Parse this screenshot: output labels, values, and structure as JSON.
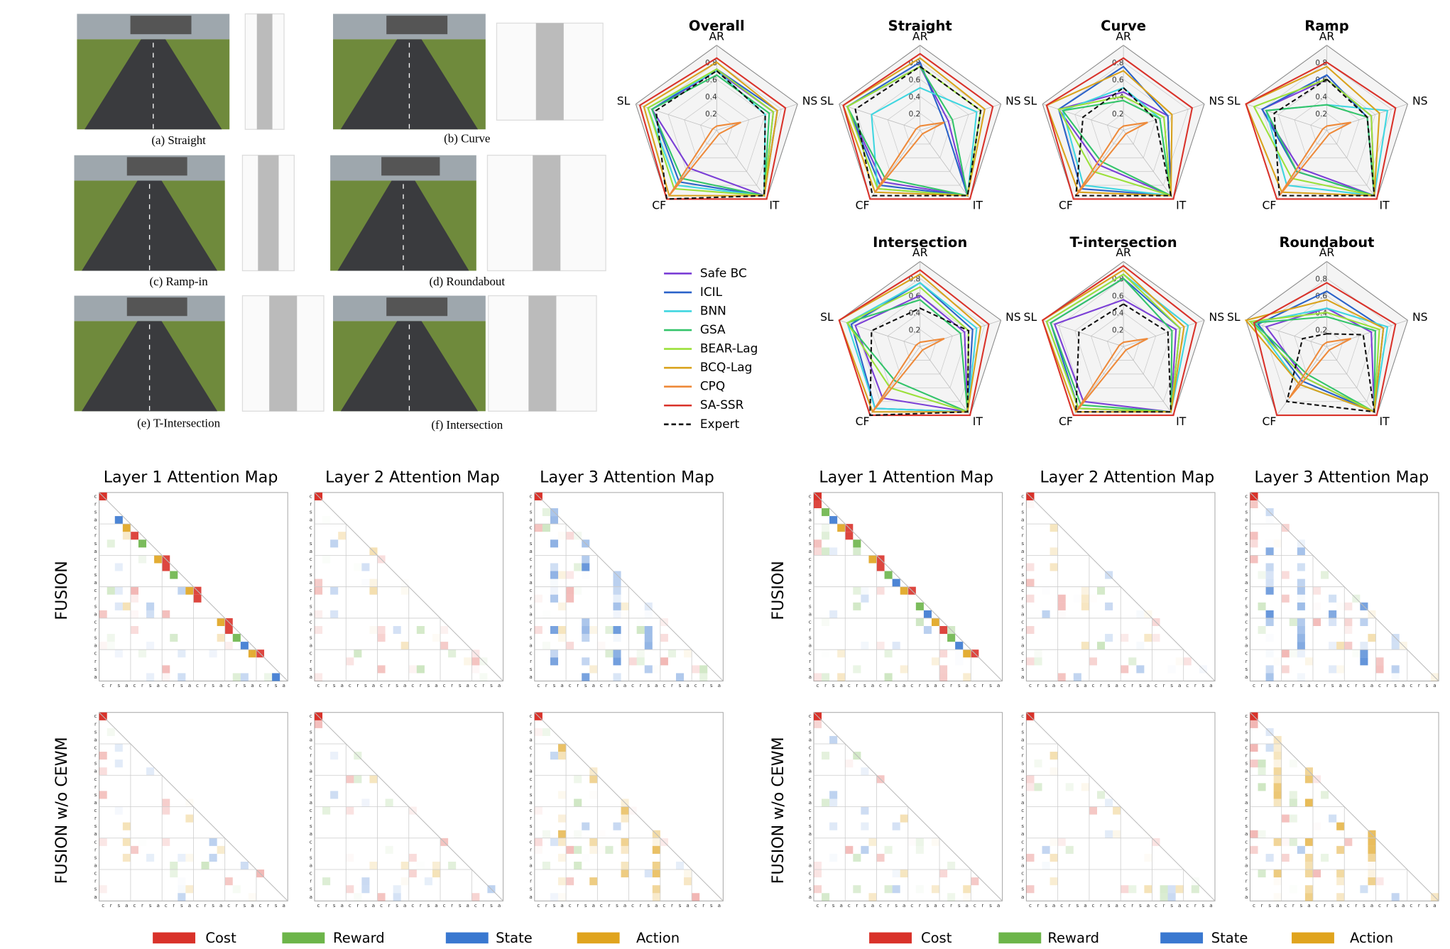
{
  "scenarios": {
    "captions": [
      "(a) Straight",
      "(b) Curve",
      "(c) Ramp-in",
      "(d) Roundabout",
      "(e) T-Intersection",
      "(f) Intersection"
    ]
  },
  "legend": [
    {
      "name": "Safe BC",
      "color": "#7b3fd6"
    },
    {
      "name": "ICIL",
      "color": "#2a62c9"
    },
    {
      "name": "BNN",
      "color": "#3fd6e0"
    },
    {
      "name": "GSA",
      "color": "#33c46a"
    },
    {
      "name": "BEAR-Lag",
      "color": "#9be03a"
    },
    {
      "name": "BCQ-Lag",
      "color": "#d9a21c"
    },
    {
      "name": "CPQ",
      "color": "#ee8a3a"
    },
    {
      "name": "SA-SSR",
      "color": "#d9322a"
    },
    {
      "name": "Expert",
      "color": "#111111",
      "dash": true
    }
  ],
  "chart_data": [
    {
      "type": "radar",
      "title": "Overall",
      "axes": [
        "AR",
        "NS",
        "IT",
        "CF",
        "SL"
      ],
      "rlim": [
        0,
        1
      ],
      "rticks": [
        0.2,
        0.4,
        0.6,
        0.8
      ],
      "series": [
        {
          "values": [
            0.7,
            0.7,
            0.95,
            0.55,
            0.8
          ]
        },
        {
          "values": [
            0.72,
            0.75,
            0.95,
            0.75,
            0.8
          ]
        },
        {
          "values": [
            0.7,
            0.6,
            0.95,
            0.8,
            0.85
          ]
        },
        {
          "values": [
            0.65,
            0.65,
            0.95,
            0.7,
            0.8
          ]
        },
        {
          "values": [
            0.72,
            0.7,
            0.95,
            0.85,
            0.85
          ]
        },
        {
          "values": [
            0.8,
            0.75,
            0.95,
            0.95,
            0.9
          ]
        },
        {
          "values": [
            0.05,
            0.3,
            0.05,
            0.95,
            0.05
          ]
        },
        {
          "values": [
            0.85,
            0.85,
            1,
            1,
            0.95
          ]
        },
        {
          "values": [
            0.7,
            0.6,
            0.95,
            1,
            0.75
          ]
        }
      ]
    },
    {
      "type": "radar",
      "title": "Straight",
      "axes": [
        "AR",
        "NS",
        "IT",
        "CF",
        "SL"
      ],
      "rlim": [
        0,
        1
      ],
      "rticks": [
        0.2,
        0.4,
        0.6,
        0.8
      ],
      "series": [
        {
          "values": [
            0.75,
            0.35,
            0.95,
            0.75,
            0.9
          ]
        },
        {
          "values": [
            0.8,
            0.3,
            0.95,
            0.8,
            0.9
          ]
        },
        {
          "values": [
            0.5,
            0.7,
            0.95,
            0.85,
            0.6
          ]
        },
        {
          "values": [
            0.75,
            0.4,
            0.95,
            0.7,
            0.9
          ]
        },
        {
          "values": [
            0.75,
            0.75,
            0.95,
            0.85,
            0.9
          ]
        },
        {
          "values": [
            0.85,
            0.8,
            0.95,
            0.9,
            0.95
          ]
        },
        {
          "values": [
            0.05,
            0.3,
            0.05,
            0.9,
            0.05
          ]
        },
        {
          "values": [
            0.9,
            0.9,
            1,
            1,
            0.95
          ]
        },
        {
          "values": [
            0.75,
            0.75,
            0.95,
            0.95,
            0.8
          ]
        }
      ]
    },
    {
      "type": "radar",
      "title": "Curve",
      "axes": [
        "AR",
        "NS",
        "IT",
        "CF",
        "SL"
      ],
      "rlim": [
        0,
        1
      ],
      "rticks": [
        0.2,
        0.4,
        0.6,
        0.8
      ],
      "series": [
        {
          "values": [
            0.45,
            0.55,
            0.95,
            0.5,
            0.8
          ]
        },
        {
          "values": [
            0.75,
            0.55,
            0.95,
            0.85,
            0.8
          ]
        },
        {
          "values": [
            0.5,
            0.45,
            0.95,
            0.8,
            0.75
          ]
        },
        {
          "values": [
            0.35,
            0.45,
            0.95,
            0.45,
            0.75
          ]
        },
        {
          "values": [
            0.4,
            0.5,
            0.95,
            0.6,
            0.8
          ]
        },
        {
          "values": [
            0.7,
            0.6,
            0.95,
            0.9,
            0.95
          ]
        },
        {
          "values": [
            0.05,
            0.3,
            0.05,
            0.95,
            0.05
          ]
        },
        {
          "values": [
            0.85,
            0.85,
            1,
            1,
            0.95
          ]
        },
        {
          "values": [
            0.5,
            0.4,
            0.95,
            0.95,
            0.5
          ]
        }
      ]
    },
    {
      "type": "radar",
      "title": "Ramp",
      "axes": [
        "AR",
        "NS",
        "IT",
        "CF",
        "SL"
      ],
      "rlim": [
        0,
        1
      ],
      "rticks": [
        0.2,
        0.4,
        0.6,
        0.8
      ],
      "series": [
        {
          "values": [
            0.6,
            0.55,
            0.95,
            0.55,
            0.8
          ]
        },
        {
          "values": [
            0.65,
            0.5,
            0.95,
            0.6,
            0.8
          ]
        },
        {
          "values": [
            0.3,
            0.75,
            0.95,
            0.8,
            0.75
          ]
        },
        {
          "values": [
            0.3,
            0.5,
            0.95,
            0.6,
            0.75
          ]
        },
        {
          "values": [
            0.6,
            0.55,
            0.95,
            0.7,
            0.9
          ]
        },
        {
          "values": [
            0.75,
            0.65,
            0.95,
            0.9,
            1
          ]
        },
        {
          "values": [
            0.05,
            0.3,
            0.05,
            0.95,
            0.05
          ]
        },
        {
          "values": [
            0.8,
            0.85,
            1,
            1,
            1
          ]
        },
        {
          "values": [
            0.6,
            0.5,
            0.95,
            0.95,
            0.65
          ]
        }
      ]
    },
    {
      "type": "radar",
      "title": "Intersection",
      "axes": [
        "AR",
        "NS",
        "IT",
        "CF",
        "SL"
      ],
      "rlim": [
        0,
        1
      ],
      "rticks": [
        0.2,
        0.4,
        0.6,
        0.8
      ],
      "series": [
        {
          "values": [
            0.6,
            0.55,
            0.95,
            0.75,
            0.8
          ]
        },
        {
          "values": [
            0.75,
            0.65,
            0.95,
            0.9,
            0.85
          ]
        },
        {
          "values": [
            0.75,
            0.7,
            0.95,
            0.9,
            0.9
          ]
        },
        {
          "values": [
            0.55,
            0.5,
            0.95,
            0.5,
            0.9
          ]
        },
        {
          "values": [
            0.7,
            0.6,
            0.95,
            0.6,
            0.9
          ]
        },
        {
          "values": [
            0.85,
            0.75,
            0.95,
            0.95,
            1
          ]
        },
        {
          "values": [
            0.05,
            0.3,
            0.05,
            0.95,
            0.05
          ]
        },
        {
          "values": [
            0.9,
            0.85,
            1,
            1,
            1
          ]
        },
        {
          "values": [
            0.45,
            0.6,
            0.95,
            1,
            0.6
          ]
        }
      ]
    },
    {
      "type": "radar",
      "title": "T-intersection",
      "axes": [
        "AR",
        "NS",
        "IT",
        "CF",
        "SL"
      ],
      "rlim": [
        0,
        1
      ],
      "rticks": [
        0.2,
        0.4,
        0.6,
        0.8
      ],
      "series": [
        {
          "values": [
            0.55,
            0.65,
            0.95,
            0.8,
            0.85
          ]
        },
        {
          "values": [
            0.8,
            0.7,
            0.95,
            0.9,
            0.9
          ]
        },
        {
          "values": [
            0.85,
            0.8,
            0.95,
            0.9,
            0.95
          ]
        },
        {
          "values": [
            0.8,
            0.6,
            0.95,
            0.85,
            0.9
          ]
        },
        {
          "values": [
            0.85,
            0.7,
            0.95,
            0.9,
            0.95
          ]
        },
        {
          "values": [
            0.9,
            0.75,
            0.95,
            0.95,
            1
          ]
        },
        {
          "values": [
            0.05,
            0.3,
            0.05,
            0.95,
            0.05
          ]
        },
        {
          "values": [
            0.95,
            0.9,
            1,
            1,
            1
          ]
        },
        {
          "values": [
            0.5,
            0.55,
            0.95,
            0.95,
            0.55
          ]
        }
      ]
    },
    {
      "type": "radar",
      "title": "Roundabout",
      "axes": [
        "AR",
        "NS",
        "IT",
        "CF",
        "SL"
      ],
      "rlim": [
        0,
        1
      ],
      "rticks": [
        0.2,
        0.4,
        0.6,
        0.8
      ],
      "series": [
        {
          "values": [
            0.45,
            0.55,
            0.95,
            0.45,
            0.75
          ]
        },
        {
          "values": [
            0.65,
            0.7,
            0.95,
            0.5,
            0.85
          ]
        },
        {
          "values": [
            0.45,
            0.75,
            0.95,
            0.55,
            0.9
          ]
        },
        {
          "values": [
            0.35,
            0.6,
            0.95,
            0.4,
            0.9
          ]
        },
        {
          "values": [
            0.4,
            0.65,
            0.95,
            0.45,
            0.95
          ]
        },
        {
          "values": [
            0.55,
            0.7,
            0.95,
            0.55,
            1
          ]
        },
        {
          "values": [
            0.05,
            0.3,
            0.05,
            0.75,
            0.05
          ]
        },
        {
          "values": [
            0.75,
            0.85,
            1,
            1,
            0.9
          ]
        },
        {
          "values": [
            0.15,
            0.45,
            0.95,
            0.8,
            0.3
          ]
        }
      ]
    }
  ],
  "attention": {
    "token_labels": [
      "c",
      "r",
      "s",
      "a"
    ],
    "groups": [
      {
        "columns": [
          "Layer 1 Attention Map",
          "Layer 2 Attention Map",
          "Layer 3 Attention Map"
        ],
        "rows": [
          "FUSION",
          "FUSION w/o CEWM"
        ],
        "legend": [
          {
            "name": "Cost",
            "color": "#d9322a"
          },
          {
            "name": "Reward",
            "color": "#6db54a"
          },
          {
            "name": "State",
            "color": "#3a78d0"
          },
          {
            "name": "Action",
            "color": "#e0a41e"
          }
        ]
      },
      {
        "columns": [
          "Layer 1 Attention Map",
          "Layer 2 Attention Map",
          "Layer 3 Attention Map"
        ],
        "rows": [
          "FUSION",
          "FUSION w/o CEWM"
        ],
        "legend": [
          {
            "name": "Cost",
            "color": "#d9322a"
          },
          {
            "name": "Reward",
            "color": "#6db54a"
          },
          {
            "name": "State",
            "color": "#3a78d0"
          },
          {
            "name": "Action",
            "color": "#e0a41e"
          }
        ]
      }
    ]
  }
}
